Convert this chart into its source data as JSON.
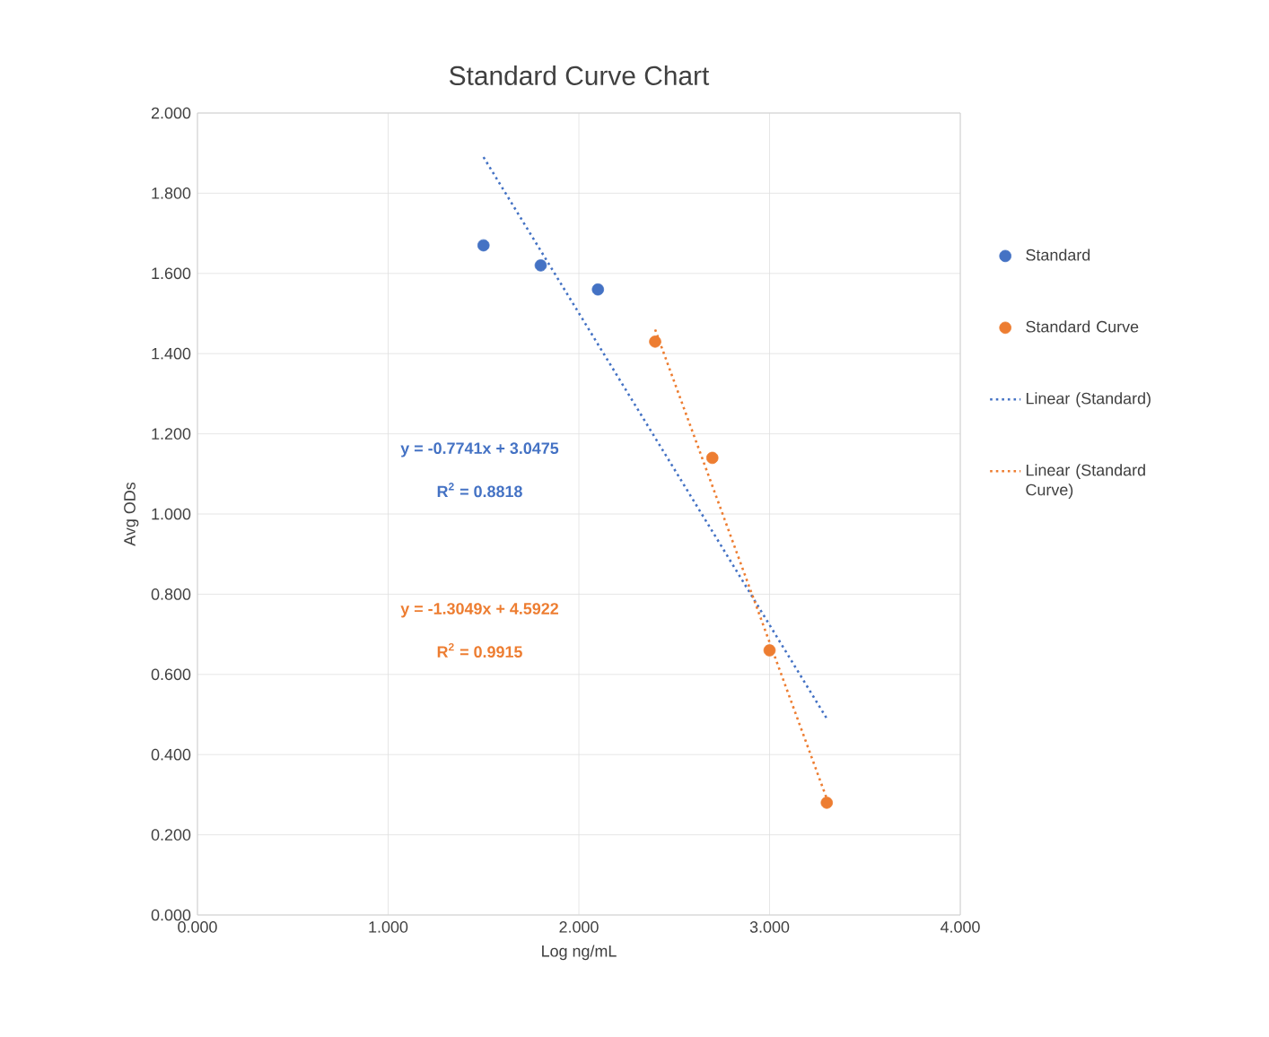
{
  "chart_data": {
    "type": "scatter",
    "title": "Standard Curve Chart",
    "xlabel": "Log ng/mL",
    "ylabel": "Avg ODs",
    "xlim": [
      0,
      4
    ],
    "xticks": [
      {
        "value": 0,
        "label": "0.000"
      },
      {
        "value": 1,
        "label": "1.000"
      },
      {
        "value": 2,
        "label": "2.000"
      },
      {
        "value": 3,
        "label": "3.000"
      },
      {
        "value": 4,
        "label": "4.000"
      }
    ],
    "ylim": [
      0,
      2
    ],
    "yticks": [
      {
        "value": 0,
        "label": "0.000"
      },
      {
        "value": 0.2,
        "label": "0.200"
      },
      {
        "value": 0.4,
        "label": "0.400"
      },
      {
        "value": 0.6,
        "label": "0.600"
      },
      {
        "value": 0.8,
        "label": "0.800"
      },
      {
        "value": 1.0,
        "label": "1.000"
      },
      {
        "value": 1.2,
        "label": "1.200"
      },
      {
        "value": 1.4,
        "label": "1.400"
      },
      {
        "value": 1.6,
        "label": "1.600"
      },
      {
        "value": 1.8,
        "label": "1.800"
      },
      {
        "value": 2.0,
        "label": "2.000"
      }
    ],
    "grid": true,
    "legend": "right",
    "series": [
      {
        "name": "Standard",
        "type": "scatter",
        "marker": "circle",
        "color": "#4472c4",
        "x": [
          1.5,
          1.8,
          2.1
        ],
        "values": [
          1.67,
          1.62,
          1.56
        ]
      },
      {
        "name": "Standard Curve",
        "type": "scatter",
        "marker": "circle",
        "color": "#ed7d31",
        "x": [
          2.4,
          2.7,
          3.0,
          3.3
        ],
        "values": [
          1.43,
          1.14,
          0.66,
          0.28
        ]
      },
      {
        "name": "Linear (Standard)",
        "type": "line",
        "marker": "none",
        "line_style": "dotted",
        "color": "#4472c4",
        "x": [
          1.5,
          3.3
        ],
        "values": [
          1.89,
          0.49
        ]
      },
      {
        "name": "Linear (Standard Curve)",
        "type": "line",
        "marker": "none",
        "line_style": "dotted",
        "color": "#ed7d31",
        "x": [
          2.4,
          3.3
        ],
        "values": [
          1.46,
          0.29
        ]
      }
    ],
    "annotations": [
      "y = -0.7741x + 3.0475",
      "R$^{2}$ = 0.8818",
      "y = -1.3049x + 4.5922",
      "R$^{2}$ = 0.9915"
    ]
  }
}
